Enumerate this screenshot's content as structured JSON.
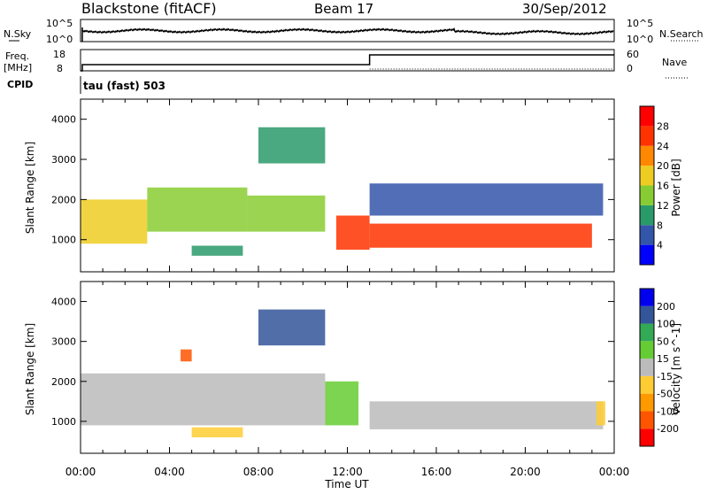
{
  "header": {
    "station": "Blackstone (fitACF)",
    "beam": "Beam 17",
    "date": "30/Sep/2012"
  },
  "top_panels": {
    "nsky_label": "N.Sky",
    "nsky_ticks": [
      "10^5",
      "10^0"
    ],
    "nsearch_label": "N.Search",
    "nsearch_ticks": [
      "10^5",
      "10^0"
    ],
    "freq_label": "Freq.",
    "freq_unit": "[MHz]",
    "freq_ticks": [
      "18",
      "8"
    ],
    "nave_label": "Nave",
    "nave_ticks": [
      "60",
      "0"
    ],
    "cpid_label": "CPID",
    "cpid_value": "tau (fast) 503",
    "freq_step_time_hours": 13.0
  },
  "chart_data": [
    {
      "type": "heatmap",
      "title": "",
      "xlabel": "Time UT",
      "ylabel": "Slant Range [km]",
      "x_ticks": [
        "00:00",
        "04:00",
        "08:00",
        "12:00",
        "16:00",
        "20:00",
        "00:00"
      ],
      "xlim_hours": [
        0,
        24
      ],
      "y_ticks": [
        1000,
        2000,
        3000,
        4000
      ],
      "ylim": [
        200,
        4500
      ],
      "colorbar": {
        "label": "Power [dB]",
        "ticks": [
          "28",
          "24",
          "20",
          "16",
          "12",
          "8",
          "4"
        ],
        "range": [
          0,
          32
        ],
        "colors": [
          "#0000ff",
          "#3355aa",
          "#2a9a6a",
          "#88cc33",
          "#eecc22",
          "#ff8800",
          "#ff3300",
          "#ff0000"
        ]
      },
      "bands": [
        {
          "x_start": 0.0,
          "x_end": 3.0,
          "y_start": 900,
          "y_end": 2000,
          "value": 16
        },
        {
          "x_start": 3.0,
          "x_end": 7.5,
          "y_start": 1200,
          "y_end": 2300,
          "value": 14
        },
        {
          "x_start": 7.5,
          "x_end": 11.0,
          "y_start": 1200,
          "y_end": 2100,
          "value": 12
        },
        {
          "x_start": 11.5,
          "x_end": 13.0,
          "y_start": 750,
          "y_end": 1600,
          "value": 24
        },
        {
          "x_start": 13.0,
          "x_end": 23.0,
          "y_start": 800,
          "y_end": 1400,
          "value": 26
        },
        {
          "x_start": 5.0,
          "x_end": 7.3,
          "y_start": 600,
          "y_end": 850,
          "value": 10
        },
        {
          "x_start": 8.0,
          "x_end": 11.0,
          "y_start": 2900,
          "y_end": 3800,
          "value": 10
        },
        {
          "x_start": 13.0,
          "x_end": 23.5,
          "y_start": 1600,
          "y_end": 2400,
          "value": 6
        }
      ]
    },
    {
      "type": "heatmap",
      "title": "",
      "xlabel": "Time UT",
      "ylabel": "Slant Range [km]",
      "x_ticks": [
        "00:00",
        "04:00",
        "08:00",
        "12:00",
        "16:00",
        "20:00",
        "00:00"
      ],
      "xlim_hours": [
        0,
        24
      ],
      "y_ticks": [
        1000,
        2000,
        3000,
        4000
      ],
      "ylim": [
        200,
        4500
      ],
      "colorbar": {
        "label": "Velocity [m s^-1]",
        "ticks": [
          "200",
          "100",
          "50",
          "15",
          "-15",
          "-50",
          "-100",
          "-200"
        ],
        "range": [
          -250,
          250
        ],
        "colors": [
          "#ff0000",
          "#ff5500",
          "#ff9900",
          "#ffcc33",
          "#bbbbbb",
          "#66cc33",
          "#33aa55",
          "#335599",
          "#0000ee"
        ]
      },
      "bands": [
        {
          "x_start": 0.0,
          "x_end": 11.0,
          "y_start": 900,
          "y_end": 2200,
          "value": 0
        },
        {
          "x_start": 11.0,
          "x_end": 12.5,
          "y_start": 900,
          "y_end": 2000,
          "value": 35
        },
        {
          "x_start": 13.0,
          "x_end": 23.5,
          "y_start": 800,
          "y_end": 1500,
          "value": 0
        },
        {
          "x_start": 5.0,
          "x_end": 7.3,
          "y_start": 600,
          "y_end": 850,
          "value": -60
        },
        {
          "x_start": 8.0,
          "x_end": 11.0,
          "y_start": 2900,
          "y_end": 3800,
          "value": 150
        },
        {
          "x_start": 4.5,
          "x_end": 5.0,
          "y_start": 2500,
          "y_end": 2800,
          "value": -150
        },
        {
          "x_start": 23.2,
          "x_end": 23.6,
          "y_start": 900,
          "y_end": 1500,
          "value": -60
        }
      ]
    }
  ]
}
